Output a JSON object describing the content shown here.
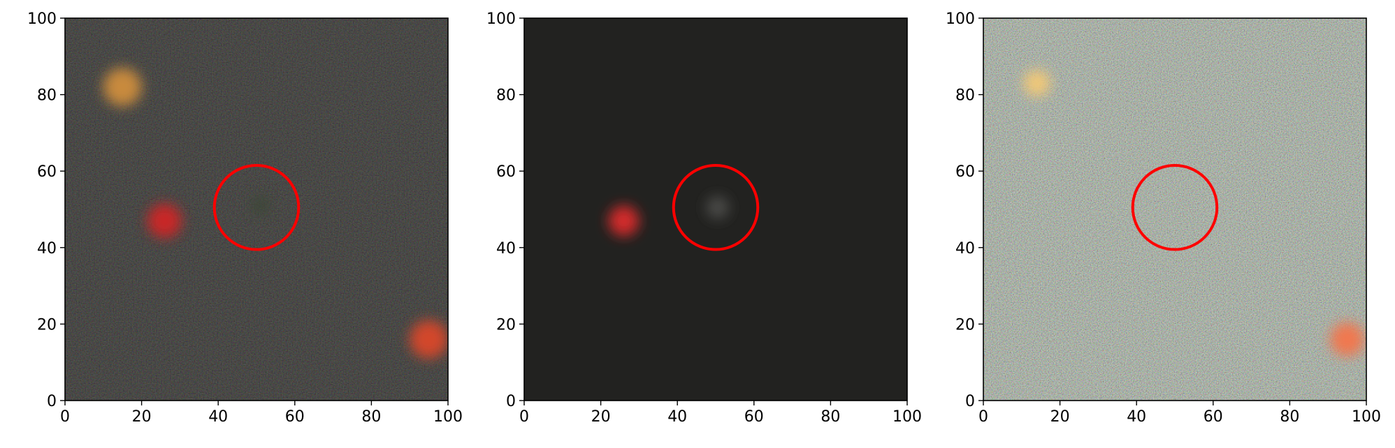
{
  "figure": {
    "panels": [
      {
        "id": "image",
        "description_free": true,
        "background": "#15140f",
        "xlim": [
          0,
          100
        ],
        "ylim": [
          0,
          100
        ],
        "xticks": [
          "0",
          "20",
          "40",
          "60",
          "80",
          "100"
        ],
        "yticks": [
          "0",
          "20",
          "40",
          "60",
          "80",
          "100"
        ],
        "marker_circle": {
          "cx": 50,
          "cy": 50.5,
          "r": 11,
          "color": "#ff0000"
        },
        "sources": [
          {
            "x": 15,
            "y": 82,
            "r": 5,
            "color": "#c88a3c"
          },
          {
            "x": 26,
            "y": 47,
            "r": 4.5,
            "color": "#c82828"
          },
          {
            "x": 95,
            "y": 16,
            "r": 5,
            "color": "#d2462a"
          },
          {
            "x": 51,
            "y": 51,
            "r": 2.5,
            "color": "#3c4638"
          }
        ]
      },
      {
        "id": "model",
        "background": "#222220",
        "xlim": [
          0,
          100
        ],
        "ylim": [
          0,
          100
        ],
        "xticks": [
          "0",
          "20",
          "40",
          "60",
          "80",
          "100"
        ],
        "yticks": [
          "0",
          "20",
          "40",
          "60",
          "80",
          "100"
        ],
        "marker_circle": {
          "cx": 50,
          "cy": 50.5,
          "r": 11,
          "color": "#ff0000"
        },
        "sources": [
          {
            "x": 26,
            "y": 47,
            "r": 4,
            "color": "#d02a2a"
          },
          {
            "x": 50.5,
            "y": 50.5,
            "r": 3,
            "color": "#4a4a46"
          }
        ]
      },
      {
        "id": "residual",
        "background": "#8a8a82",
        "xlim": [
          0,
          100
        ],
        "ylim": [
          0,
          100
        ],
        "xticks": [
          "0",
          "20",
          "40",
          "60",
          "80",
          "100"
        ],
        "yticks": [
          "0",
          "20",
          "40",
          "60",
          "80",
          "100"
        ],
        "marker_circle": {
          "cx": 50,
          "cy": 50.5,
          "r": 11,
          "color": "#ff0000"
        },
        "sources": [
          {
            "x": 14,
            "y": 83,
            "r": 3.5,
            "color": "#f0c878"
          },
          {
            "x": 95,
            "y": 16,
            "r": 4.5,
            "color": "#f07850"
          }
        ]
      }
    ]
  }
}
